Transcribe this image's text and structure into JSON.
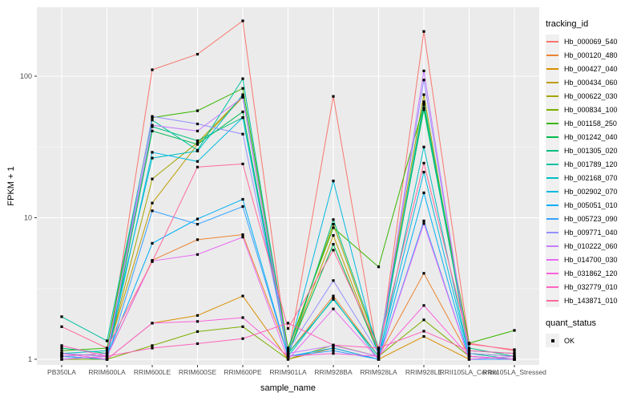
{
  "chart_data": {
    "type": "line",
    "title": "",
    "xlabel": "sample_name",
    "ylabel": "FPKM + 1",
    "y_scale": "log10",
    "y_ticks": [
      1,
      10,
      100
    ],
    "y_minor_ticks": [
      3.162,
      31.62
    ],
    "ylim": [
      0.91,
      310
    ],
    "grid": "on",
    "panel_background": "#EBEBEB",
    "gridline_color": "#FFFFFF",
    "point_color": "#000000",
    "legend_position": "right",
    "legend_title": "tracking_id",
    "quant_legend": {
      "title": "quant_status",
      "items": [
        {
          "label": "OK",
          "marker": "black-square"
        }
      ]
    },
    "categories": [
      "PB350LA",
      "RRIM600LA",
      "RRIM600LE",
      "RRIM600SE",
      "RRIM600PE",
      "RRIM901LA",
      "RRIM928BA",
      "RRIM928LA",
      "RRIM928LE",
      "RRII105LA_Control",
      "RRII105LA_Stressed"
    ],
    "series": [
      {
        "name": "Hb_000069_540",
        "color": "#F8766D",
        "values": [
          1.05,
          1.0,
          111,
          143,
          246,
          1.05,
          72,
          1.0,
          207,
          1.3,
          1.15
        ]
      },
      {
        "name": "Hb_000120_480",
        "color": "#EA8331",
        "values": [
          1.1,
          1.05,
          5.0,
          7.0,
          7.6,
          1.1,
          2.8,
          1.05,
          4.05,
          1.05,
          1.0
        ]
      },
      {
        "name": "Hb_000427_040",
        "color": "#D89000",
        "values": [
          1.0,
          1.0,
          1.8,
          2.04,
          2.8,
          1.0,
          1.2,
          1.0,
          1.45,
          1.0,
          1.0
        ]
      },
      {
        "name": "Hb_000434_060",
        "color": "#C09B00",
        "values": [
          1.05,
          1.1,
          12.7,
          33,
          71,
          1.1,
          7.5,
          1.1,
          64,
          1.1,
          1.05
        ]
      },
      {
        "name": "Hb_000622_030",
        "color": "#A3A500",
        "values": [
          1.1,
          1.05,
          18.8,
          34,
          72,
          1.15,
          9.0,
          1.15,
          74,
          1.05,
          1.0
        ]
      },
      {
        "name": "Hb_000834_100",
        "color": "#7CAE00",
        "values": [
          1.0,
          1.0,
          1.25,
          1.57,
          1.7,
          1.0,
          1.26,
          1.05,
          1.9,
          1.05,
          1.0
        ]
      },
      {
        "name": "Hb_001158_250",
        "color": "#39B600",
        "values": [
          1.15,
          1.2,
          51,
          57,
          82,
          1.2,
          8.5,
          4.5,
          63,
          1.3,
          1.6
        ]
      },
      {
        "name": "Hb_001242_040",
        "color": "#00BB4E",
        "values": [
          1.05,
          1.0,
          41,
          33,
          56,
          1.1,
          6.5,
          1.1,
          60,
          1.15,
          1.1
        ]
      },
      {
        "name": "Hb_001305_020",
        "color": "#00BF7D",
        "values": [
          1.2,
          1.1,
          44,
          35,
          51,
          1.05,
          9.7,
          1.2,
          58,
          1.2,
          1.05
        ]
      },
      {
        "name": "Hb_001789_120",
        "color": "#00C1A3",
        "values": [
          2.0,
          1.35,
          49,
          30,
          96,
          1.1,
          2.65,
          1.05,
          66,
          1.1,
          1.0
        ]
      },
      {
        "name": "Hb_002168_070",
        "color": "#00BFC4",
        "values": [
          1.1,
          1.15,
          26.4,
          29.6,
          74,
          1.05,
          2.7,
          1.0,
          31.6,
          1.05,
          1.0
        ]
      },
      {
        "name": "Hb_002902_070",
        "color": "#00BAE0",
        "values": [
          1.05,
          1.0,
          29,
          25,
          51,
          1.1,
          18.2,
          1.05,
          21,
          1.05,
          1.0
        ]
      },
      {
        "name": "Hb_005051_010",
        "color": "#00B0F6",
        "values": [
          1.0,
          1.05,
          6.6,
          9.8,
          13.5,
          1.05,
          1.2,
          1.0,
          15.0,
          1.0,
          1.0
        ]
      },
      {
        "name": "Hb_005723_090",
        "color": "#35A2FF",
        "values": [
          1.05,
          1.0,
          11.2,
          9.0,
          12.0,
          1.05,
          1.15,
          1.0,
          9.5,
          1.0,
          1.0
        ]
      },
      {
        "name": "Hb_009771_040",
        "color": "#9590FF",
        "values": [
          1.1,
          1.05,
          52,
          46,
          39,
          1.15,
          3.6,
          1.1,
          94,
          1.1,
          1.05
        ]
      },
      {
        "name": "Hb_010222_060",
        "color": "#C77CFF",
        "values": [
          1.05,
          1.1,
          45,
          41,
          71,
          1.1,
          1.25,
          1.05,
          109,
          1.05,
          1.0
        ]
      },
      {
        "name": "Hb_014700_030",
        "color": "#E76BF3",
        "values": [
          1.0,
          1.05,
          4.95,
          5.5,
          7.3,
          1.0,
          2.27,
          1.0,
          9.1,
          1.0,
          1.05
        ]
      },
      {
        "name": "Hb_031862_120",
        "color": "#FA62DB",
        "values": [
          1.1,
          1.0,
          1.8,
          1.85,
          1.97,
          1.05,
          1.1,
          1.05,
          2.4,
          1.05,
          1.0
        ]
      },
      {
        "name": "Hb_032779_010",
        "color": "#FF62BC",
        "values": [
          1.25,
          1.05,
          1.2,
          1.29,
          1.4,
          1.8,
          1.26,
          1.2,
          1.58,
          1.15,
          1.1
        ]
      },
      {
        "name": "Hb_143871_010",
        "color": "#FF6A98",
        "values": [
          1.7,
          1.2,
          4.9,
          22.8,
          24.0,
          1.65,
          5.9,
          1.2,
          24.3,
          1.28,
          1.17
        ]
      }
    ]
  }
}
